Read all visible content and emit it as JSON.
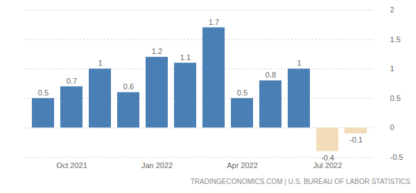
{
  "chart_data": {
    "type": "bar",
    "categories": [
      null,
      "Oct 2021",
      null,
      null,
      "Jan 2022",
      null,
      null,
      "Apr 2022",
      null,
      null,
      "Jul 2022",
      null
    ],
    "values": [
      0.5,
      0.7,
      1,
      0.6,
      1.2,
      1.1,
      1.7,
      0.5,
      0.8,
      1,
      -0.4,
      -0.1
    ],
    "colors": [
      "#4a7fb5",
      "#4a7fb5",
      "#4a7fb5",
      "#4a7fb5",
      "#4a7fb5",
      "#4a7fb5",
      "#4a7fb5",
      "#4a7fb5",
      "#4a7fb5",
      "#4a7fb5",
      "#f3ddb8",
      "#f3ddb8"
    ],
    "ylim": [
      -0.5,
      2
    ],
    "yticks": [
      -0.5,
      0,
      0.5,
      1,
      1.5,
      2
    ],
    "grid": true,
    "data_labels": true,
    "caption": "TRADINGECONOMICS.COM | U.S. BUREAU OF LABOR STATISTICS"
  }
}
